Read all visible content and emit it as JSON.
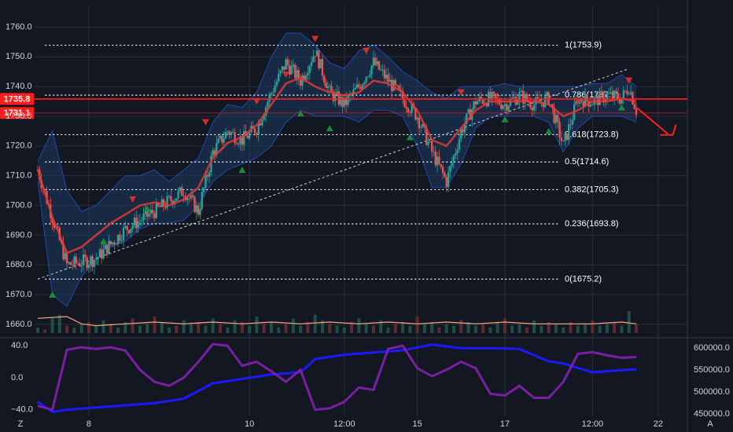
{
  "colors": {
    "background": "#131722",
    "grid": "#2a2e39",
    "bull_candle": "#26a69a",
    "bear_candle": "#ef5350",
    "band_fill": "#1e3a5f",
    "band_line": "#2962ff",
    "moving_average": "#e53935",
    "volume_ma": "#f8a88a",
    "buy_marker": "#1b8a3a",
    "sell_marker": "#d32f2f",
    "price_line": "#ff1e1e",
    "oscillator": "#7b1fa2",
    "cumulative_line": "#1a1aff",
    "fib_line": "#ffffff",
    "trendline": "#cfd3dc"
  },
  "chart_data": {
    "type": "candlestick",
    "price_axis": {
      "ylim": [
        1656,
        1767
      ],
      "ticks": [
        "1760.0",
        "1750.0",
        "1740.0",
        "1730.0",
        "1720.0",
        "1710.0",
        "1700.0",
        "1690.0",
        "1680.0",
        "1670.0",
        "1660.0"
      ],
      "tick_values": [
        1760,
        1750,
        1740,
        1730,
        1720,
        1710,
        1700,
        1690,
        1680,
        1670,
        1660
      ]
    },
    "time_axis": {
      "ticks": [
        "8",
        "10",
        "12:00",
        "15",
        "17",
        "12:00",
        "22"
      ],
      "corner_left": "Z",
      "corner_right": "A"
    },
    "current_price": {
      "value": 1735.8,
      "label": "1735.8"
    },
    "secondary_price": {
      "value": 1731.1,
      "label": "1731.1"
    },
    "fibonacci": [
      {
        "label": "1(1753.9)",
        "value": 1753.9
      },
      {
        "label": "0.786(1737.1)",
        "value": 1737.1
      },
      {
        "label": "0.618(1723.8)",
        "value": 1723.8
      },
      {
        "label": "0.5(1714.6)",
        "value": 1714.6
      },
      {
        "label": "0.382(1705.3)",
        "value": 1705.3
      },
      {
        "label": "0.236(1693.8)",
        "value": 1693.8
      },
      {
        "label": "0(1675.2)",
        "value": 1675.2
      }
    ],
    "price_path": [
      [
        0,
        1712
      ],
      [
        4,
        1680
      ],
      [
        8,
        1682
      ],
      [
        12,
        1692
      ],
      [
        16,
        1698
      ],
      [
        20,
        1705
      ],
      [
        22,
        1698
      ],
      [
        24,
        1718
      ],
      [
        26,
        1725
      ],
      [
        28,
        1722
      ],
      [
        30,
        1726
      ],
      [
        32,
        1738
      ],
      [
        34,
        1748
      ],
      [
        36,
        1742
      ],
      [
        38,
        1752
      ],
      [
        40,
        1738
      ],
      [
        42,
        1734
      ],
      [
        44,
        1740
      ],
      [
        46,
        1748
      ],
      [
        48,
        1742
      ],
      [
        50,
        1736
      ],
      [
        52,
        1730
      ],
      [
        54,
        1718
      ],
      [
        56,
        1708
      ],
      [
        58,
        1725
      ],
      [
        60,
        1735
      ],
      [
        62,
        1736
      ],
      [
        64,
        1734
      ],
      [
        66,
        1737
      ],
      [
        68,
        1734
      ],
      [
        70,
        1736
      ],
      [
        72,
        1720
      ],
      [
        74,
        1736
      ],
      [
        76,
        1735
      ],
      [
        78,
        1737
      ],
      [
        80,
        1736
      ],
      [
        81,
        1740
      ],
      [
        82,
        1732
      ]
    ],
    "moving_average": [
      [
        0,
        1712
      ],
      [
        2,
        1696
      ],
      [
        4,
        1684
      ],
      [
        6,
        1686
      ],
      [
        8,
        1690
      ],
      [
        10,
        1694
      ],
      [
        12,
        1697
      ],
      [
        14,
        1700
      ],
      [
        16,
        1701
      ],
      [
        18,
        1700
      ],
      [
        20,
        1702
      ],
      [
        22,
        1706
      ],
      [
        24,
        1716
      ],
      [
        26,
        1721
      ],
      [
        28,
        1723
      ],
      [
        30,
        1727
      ],
      [
        32,
        1734
      ],
      [
        34,
        1741
      ],
      [
        36,
        1743
      ],
      [
        38,
        1740
      ],
      [
        40,
        1738
      ],
      [
        42,
        1737
      ],
      [
        44,
        1738
      ],
      [
        46,
        1742
      ],
      [
        48,
        1741
      ],
      [
        50,
        1738
      ],
      [
        52,
        1732
      ],
      [
        54,
        1722
      ],
      [
        56,
        1720
      ],
      [
        58,
        1726
      ],
      [
        60,
        1732
      ],
      [
        62,
        1735
      ],
      [
        64,
        1735
      ],
      [
        66,
        1735
      ],
      [
        68,
        1735
      ],
      [
        70,
        1734
      ],
      [
        72,
        1730
      ],
      [
        74,
        1732
      ],
      [
        76,
        1735
      ],
      [
        78,
        1735
      ],
      [
        80,
        1736
      ],
      [
        82,
        1735
      ]
    ],
    "band_upper": [
      [
        0,
        1715
      ],
      [
        2,
        1725
      ],
      [
        4,
        1705
      ],
      [
        6,
        1698
      ],
      [
        8,
        1700
      ],
      [
        10,
        1705
      ],
      [
        12,
        1710
      ],
      [
        14,
        1710
      ],
      [
        16,
        1712
      ],
      [
        18,
        1708
      ],
      [
        20,
        1712
      ],
      [
        22,
        1716
      ],
      [
        24,
        1728
      ],
      [
        26,
        1734
      ],
      [
        28,
        1733
      ],
      [
        30,
        1738
      ],
      [
        32,
        1750
      ],
      [
        34,
        1758
      ],
      [
        36,
        1758
      ],
      [
        38,
        1754
      ],
      [
        40,
        1748
      ],
      [
        42,
        1746
      ],
      [
        44,
        1752
      ],
      [
        46,
        1754
      ],
      [
        48,
        1750
      ],
      [
        50,
        1745
      ],
      [
        52,
        1742
      ],
      [
        54,
        1738
      ],
      [
        56,
        1736
      ],
      [
        58,
        1740
      ],
      [
        60,
        1740
      ],
      [
        62,
        1740
      ],
      [
        64,
        1741
      ],
      [
        66,
        1740
      ],
      [
        68,
        1740
      ],
      [
        70,
        1740
      ],
      [
        72,
        1740
      ],
      [
        74,
        1740
      ],
      [
        76,
        1741
      ],
      [
        78,
        1741
      ],
      [
        80,
        1744
      ],
      [
        82,
        1740
      ]
    ],
    "band_lower": [
      [
        0,
        1708
      ],
      [
        2,
        1670
      ],
      [
        4,
        1666
      ],
      [
        6,
        1676
      ],
      [
        8,
        1682
      ],
      [
        10,
        1686
      ],
      [
        12,
        1688
      ],
      [
        14,
        1692
      ],
      [
        16,
        1694
      ],
      [
        18,
        1694
      ],
      [
        20,
        1695
      ],
      [
        22,
        1700
      ],
      [
        24,
        1708
      ],
      [
        26,
        1712
      ],
      [
        28,
        1714
      ],
      [
        30,
        1716
      ],
      [
        32,
        1720
      ],
      [
        34,
        1728
      ],
      [
        36,
        1732
      ],
      [
        38,
        1730
      ],
      [
        40,
        1730
      ],
      [
        42,
        1730
      ],
      [
        44,
        1728
      ],
      [
        46,
        1732
      ],
      [
        48,
        1732
      ],
      [
        50,
        1730
      ],
      [
        52,
        1720
      ],
      [
        54,
        1706
      ],
      [
        56,
        1706
      ],
      [
        58,
        1714
      ],
      [
        60,
        1726
      ],
      [
        62,
        1730
      ],
      [
        64,
        1730
      ],
      [
        66,
        1730
      ],
      [
        68,
        1730
      ],
      [
        70,
        1728
      ],
      [
        72,
        1718
      ],
      [
        74,
        1726
      ],
      [
        76,
        1730
      ],
      [
        78,
        1730
      ],
      [
        80,
        1730
      ],
      [
        82,
        1728
      ]
    ],
    "sell_signals": [
      [
        13,
        1702
      ],
      [
        23,
        1728
      ],
      [
        30,
        1735
      ],
      [
        34,
        1744
      ],
      [
        38,
        1756
      ],
      [
        45,
        1752
      ],
      [
        58,
        1738
      ],
      [
        74,
        1735
      ],
      [
        81,
        1742
      ]
    ],
    "buy_signals": [
      [
        2,
        1670
      ],
      [
        9,
        1688
      ],
      [
        15,
        1699
      ],
      [
        28,
        1712
      ],
      [
        36,
        1731
      ],
      [
        40,
        1726
      ],
      [
        51,
        1723
      ],
      [
        64,
        1729
      ],
      [
        70,
        1725
      ],
      [
        80,
        1733
      ]
    ],
    "volume": [
      3,
      2,
      8,
      10,
      4,
      3,
      5,
      6,
      4,
      7,
      5,
      3,
      6,
      8,
      4,
      5,
      9,
      6,
      3,
      4,
      7,
      5,
      6,
      4,
      8,
      5,
      3,
      7,
      6,
      4,
      9,
      5,
      6,
      3,
      5,
      8,
      4,
      6,
      10,
      7,
      5,
      4,
      3,
      6,
      8,
      5,
      4,
      7,
      3,
      5,
      6,
      4,
      9,
      5,
      6,
      3,
      5,
      4,
      7,
      6,
      4,
      5,
      3,
      6,
      8,
      4,
      5,
      3,
      7,
      4,
      6,
      5,
      3,
      6,
      4,
      5,
      7,
      4,
      5,
      6,
      4,
      12,
      5
    ],
    "volume_ma": [
      [
        0,
        8
      ],
      [
        4,
        9
      ],
      [
        6,
        5
      ],
      [
        8,
        4
      ],
      [
        12,
        5
      ],
      [
        16,
        6
      ],
      [
        20,
        5
      ],
      [
        24,
        6
      ],
      [
        28,
        5
      ],
      [
        32,
        6
      ],
      [
        36,
        5
      ],
      [
        40,
        6
      ],
      [
        44,
        5
      ],
      [
        48,
        6
      ],
      [
        52,
        5
      ],
      [
        56,
        6
      ],
      [
        60,
        5
      ],
      [
        64,
        6
      ],
      [
        68,
        5
      ],
      [
        72,
        5
      ],
      [
        76,
        5
      ],
      [
        80,
        6
      ],
      [
        82,
        5
      ]
    ],
    "trendline": [
      [
        0,
        1675.2
      ],
      [
        81,
        1746
      ]
    ],
    "projection_arrow": {
      "from": [
        82,
        1733
      ],
      "to": [
        87,
        1724
      ]
    },
    "oscillator_axis": {
      "ylim": [
        -48,
        48
      ],
      "ticks": [
        "40.0",
        "0.0",
        "−40.0"
      ],
      "tick_values": [
        40,
        0,
        -40
      ]
    },
    "oscillator": [
      [
        0,
        -35
      ],
      [
        2,
        -40
      ],
      [
        4,
        35
      ],
      [
        6,
        38
      ],
      [
        8,
        36
      ],
      [
        10,
        38
      ],
      [
        12,
        34
      ],
      [
        14,
        10
      ],
      [
        16,
        -5
      ],
      [
        18,
        -10
      ],
      [
        20,
        0
      ],
      [
        22,
        20
      ],
      [
        24,
        42
      ],
      [
        26,
        40
      ],
      [
        28,
        15
      ],
      [
        30,
        20
      ],
      [
        32,
        8
      ],
      [
        34,
        -5
      ],
      [
        36,
        10
      ],
      [
        38,
        -40
      ],
      [
        40,
        -38
      ],
      [
        42,
        -30
      ],
      [
        44,
        -12
      ],
      [
        46,
        -15
      ],
      [
        48,
        36
      ],
      [
        50,
        40
      ],
      [
        52,
        12
      ],
      [
        54,
        2
      ],
      [
        56,
        10
      ],
      [
        58,
        20
      ],
      [
        60,
        12
      ],
      [
        62,
        -20
      ],
      [
        64,
        -22
      ],
      [
        66,
        -10
      ],
      [
        68,
        -25
      ],
      [
        70,
        -25
      ],
      [
        72,
        -5
      ],
      [
        74,
        30
      ],
      [
        76,
        32
      ],
      [
        78,
        28
      ],
      [
        80,
        25
      ],
      [
        82,
        26
      ]
    ],
    "volume_axis": {
      "ylim": [
        445000,
        620000
      ],
      "ticks": [
        "600000.0",
        "550000.0",
        "500000.0",
        "450000.0"
      ],
      "tick_values": [
        600000,
        550000,
        500000,
        450000
      ]
    },
    "cumulative": [
      [
        0,
        478000
      ],
      [
        2,
        455000
      ],
      [
        4,
        460000
      ],
      [
        8,
        465000
      ],
      [
        12,
        470000
      ],
      [
        16,
        475000
      ],
      [
        20,
        485000
      ],
      [
        24,
        520000
      ],
      [
        28,
        530000
      ],
      [
        32,
        540000
      ],
      [
        36,
        545000
      ],
      [
        38,
        575000
      ],
      [
        42,
        585000
      ],
      [
        46,
        590000
      ],
      [
        50,
        595000
      ],
      [
        54,
        608000
      ],
      [
        58,
        600000
      ],
      [
        62,
        600000
      ],
      [
        66,
        598000
      ],
      [
        70,
        570000
      ],
      [
        72,
        565000
      ],
      [
        76,
        545000
      ],
      [
        80,
        550000
      ],
      [
        82,
        552000
      ]
    ]
  }
}
